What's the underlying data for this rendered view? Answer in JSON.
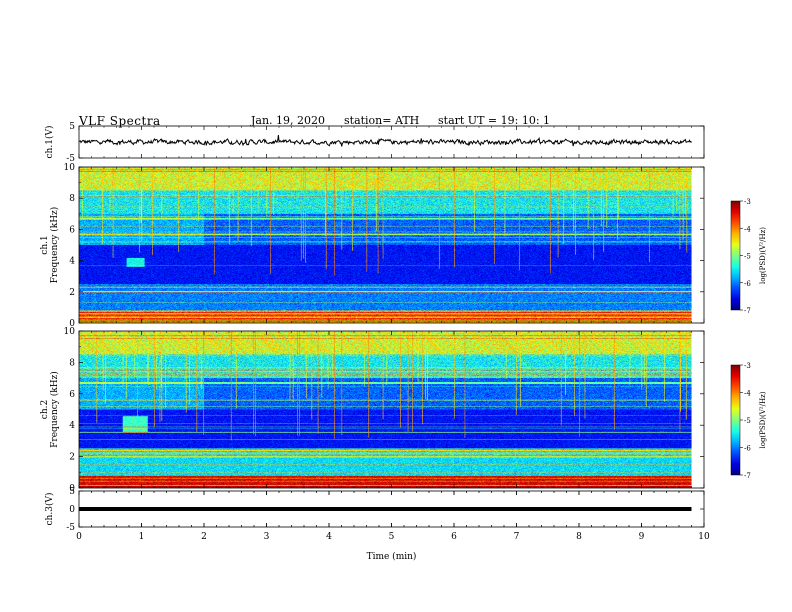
{
  "header": {
    "title": "VLF  Spectra",
    "date": "Jan.  19,  2020",
    "station": "station= ATH",
    "start": "start  UT  =    19: 10: 1"
  },
  "chart_data": [
    {
      "type": "line",
      "panel": "ch1-waveform",
      "ylabel": "ch.1(V)",
      "ylim": [
        -5,
        5
      ],
      "yticks": [
        "5",
        "-5"
      ],
      "xlim": [
        0,
        10
      ],
      "trace_end_min": 9.8,
      "baseline_V": 0,
      "noise_amplitude_V": 0.5,
      "color": "#000000"
    },
    {
      "type": "heatmap",
      "panel": "ch1-spectrogram",
      "ylabel": "ch.1\nFrequency  (kHz)",
      "ylim": [
        0,
        10
      ],
      "yticks": [
        "0",
        "2",
        "4",
        "6",
        "8",
        "10"
      ],
      "xlim": [
        0,
        10
      ],
      "data_end_min": 9.8,
      "colorbar": {
        "label": "log(PSD)(V²/Hz)",
        "range": [
          -7,
          -3
        ],
        "ticks": [
          "-3",
          "-4",
          "-5",
          "-6",
          "-7"
        ]
      }
    },
    {
      "type": "heatmap",
      "panel": "ch2-spectrogram",
      "ylabel": "ch.2\nFrequency  (kHz)",
      "ylim": [
        0,
        10
      ],
      "yticks": [
        "0",
        "2",
        "4",
        "6",
        "8",
        "10"
      ],
      "xlim": [
        0,
        10
      ],
      "data_end_min": 9.8,
      "colorbar": {
        "label": "log(PSD)(V²/Hz)",
        "range": [
          -7,
          -3
        ],
        "ticks": [
          "-3",
          "-4",
          "-5",
          "-6",
          "-7"
        ]
      }
    },
    {
      "type": "line",
      "panel": "ch3-waveform",
      "ylabel": "ch.3(V)",
      "ylim": [
        -5,
        5
      ],
      "yticks": [
        "5",
        "0",
        "-5"
      ],
      "xlim": [
        0,
        10
      ],
      "trace_end_min": 9.8,
      "baseline_V": 0,
      "color": "#000000"
    }
  ],
  "xaxis": {
    "label": "Time  (min)",
    "ticks": [
      "0",
      "1",
      "2",
      "3",
      "4",
      "5",
      "6",
      "7",
      "8",
      "9",
      "10"
    ]
  }
}
